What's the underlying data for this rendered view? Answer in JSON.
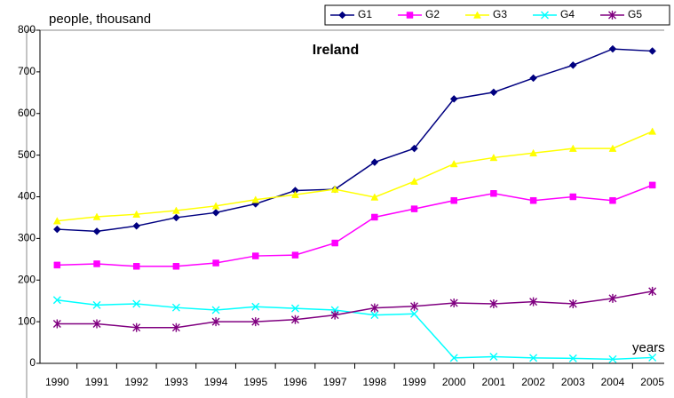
{
  "chart_data": {
    "type": "line",
    "title": "Ireland",
    "y_label": "people, thousand",
    "x_label": "years",
    "categories": [
      "1990",
      "1991",
      "1992",
      "1993",
      "1994",
      "1995",
      "1996",
      "1997",
      "1998",
      "1999",
      "2000",
      "2001",
      "2002",
      "2003",
      "2004",
      "2005"
    ],
    "series": [
      {
        "name": "G1",
        "color": "#000080",
        "marker": "diamond",
        "values": [
          322,
          317,
          330,
          350,
          362,
          383,
          415,
          418,
          483,
          516,
          635,
          651,
          685,
          716,
          755,
          750
        ]
      },
      {
        "name": "G2",
        "color": "#ff00ff",
        "marker": "square",
        "values": [
          236,
          239,
          233,
          233,
          241,
          258,
          260,
          289,
          351,
          371,
          391,
          408,
          391,
          400,
          391,
          428
        ]
      },
      {
        "name": "G3",
        "color": "#ffff00",
        "marker": "triangle",
        "values": [
          342,
          352,
          358,
          367,
          378,
          393,
          405,
          418,
          399,
          437,
          479,
          494,
          505,
          516,
          516,
          557
        ]
      },
      {
        "name": "G4",
        "color": "#00ffff",
        "marker": "x",
        "values": [
          152,
          140,
          143,
          134,
          128,
          136,
          132,
          128,
          116,
          119,
          13,
          16,
          13,
          12,
          10,
          14
        ]
      },
      {
        "name": "G5",
        "color": "#800080",
        "marker": "asterisk",
        "values": [
          95,
          95,
          86,
          86,
          100,
          100,
          105,
          116,
          133,
          137,
          145,
          143,
          148,
          143,
          156,
          173
        ]
      }
    ],
    "ylim": [
      0,
      800
    ],
    "yticks": [
      0,
      100,
      200,
      300,
      400,
      500,
      600,
      700,
      800
    ],
    "grid": false,
    "legend": "top-right"
  }
}
